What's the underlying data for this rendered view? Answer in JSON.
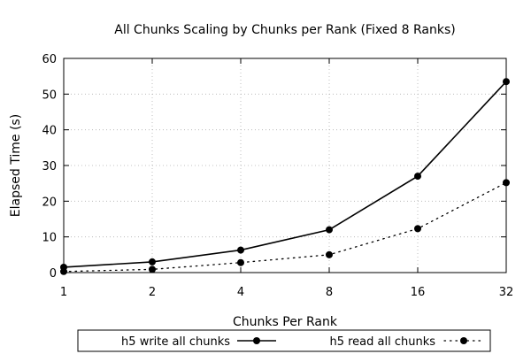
{
  "chart_data": {
    "type": "line",
    "title": "All Chunks Scaling by Chunks per Rank (Fixed 8 Ranks)",
    "xlabel": "Chunks Per Rank",
    "ylabel": "Elapsed Time (s)",
    "x_scale": "log2",
    "x": [
      1,
      2,
      4,
      8,
      16,
      32
    ],
    "x_tick_labels": [
      "1",
      "2",
      "4",
      "8",
      "16",
      "32"
    ],
    "ylim": [
      0,
      60
    ],
    "y_ticks": [
      0,
      10,
      20,
      30,
      40,
      50,
      60
    ],
    "y_tick_labels": [
      "0",
      "10",
      "20",
      "30",
      "40",
      "50",
      "60"
    ],
    "grid": true,
    "legend_position": "bottom",
    "series": [
      {
        "name": "h5 write all chunks",
        "values": [
          1.5,
          3.0,
          6.3,
          12.0,
          27.0,
          53.5
        ],
        "style": "solid",
        "color": "#000000"
      },
      {
        "name": "h5 read all chunks",
        "values": [
          0.3,
          0.9,
          2.8,
          5.0,
          12.3,
          25.2
        ],
        "style": "dotted",
        "color": "#000000"
      }
    ]
  }
}
